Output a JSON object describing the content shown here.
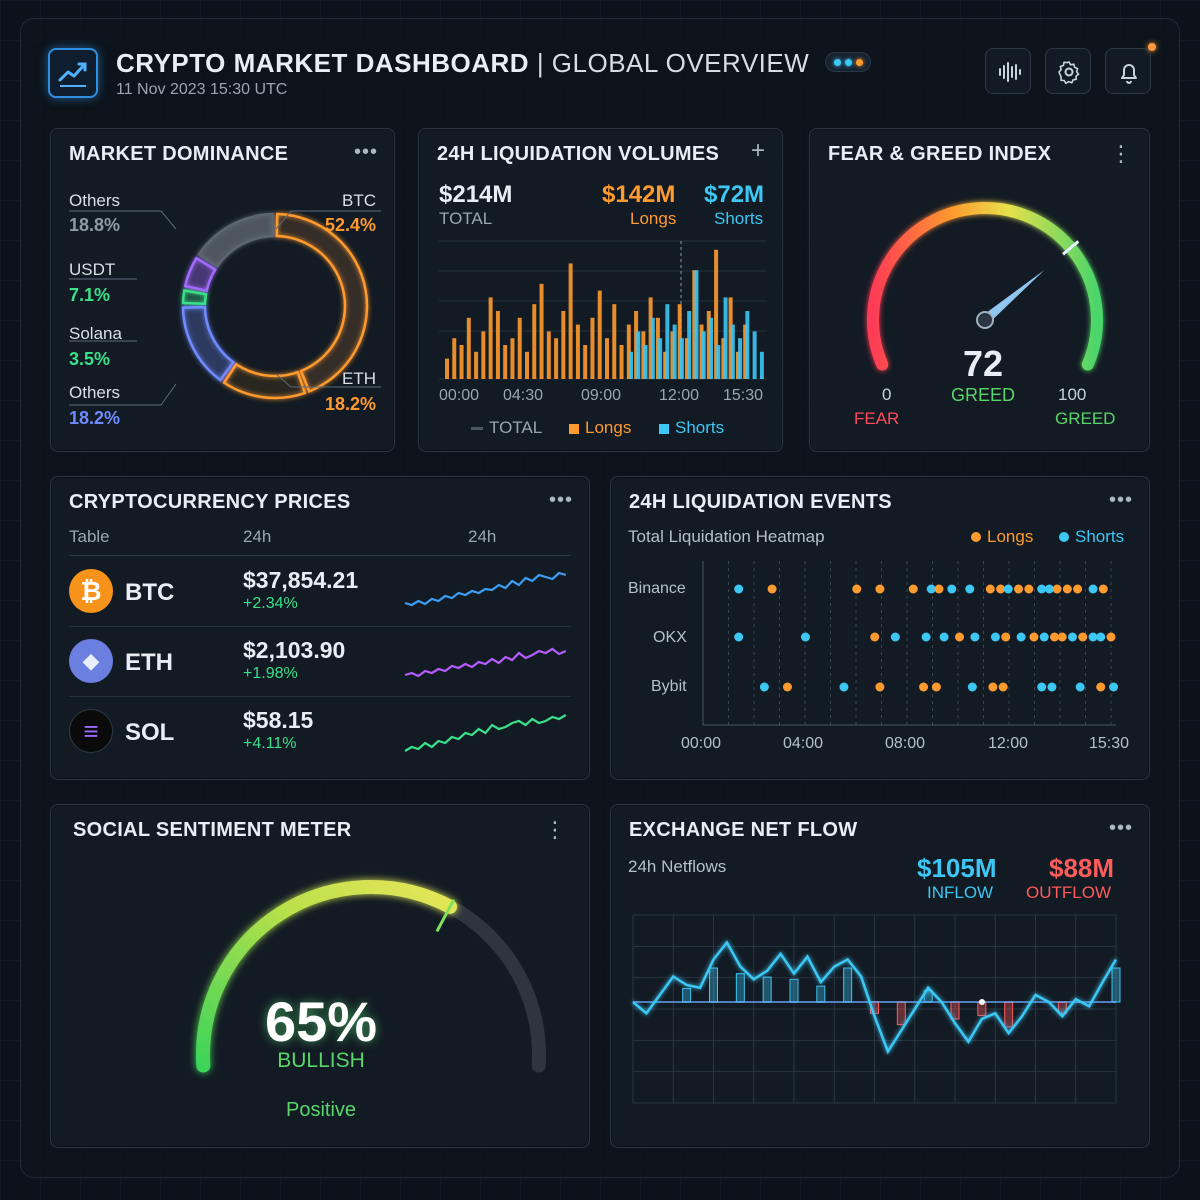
{
  "header": {
    "title": "CRYPTO MARKET DASHBOARD",
    "subtitle": "| GLOBAL OVERVIEW",
    "timestamp": "11 Nov 2023 15:30 UTC",
    "icons": [
      "trend-chart-icon",
      "waveform-icon",
      "gear-icon",
      "bell-icon"
    ]
  },
  "colors": {
    "btc": "#ff9a2e",
    "eth": "#8a7dff",
    "sol": "#3be08a",
    "shorts": "#3cc7f5",
    "longs": "#ff9a2e",
    "fear": "#ff4b5c",
    "greed": "#58d66a"
  },
  "dominance": {
    "title": "MARKET DOMINANCE",
    "labels": [
      {
        "name": "Others",
        "pct": "18.8%"
      },
      {
        "name": "USDT",
        "pct": "7.1%"
      },
      {
        "name": "Solana",
        "pct": "3.5%"
      },
      {
        "name": "Others",
        "pct": "18.2%"
      },
      {
        "name": "BTC",
        "pct": "52.4%"
      },
      {
        "name": "ETH",
        "pct": "18.2%"
      }
    ]
  },
  "liq_volumes": {
    "title": "24H LIQUIDATION VOLUMES",
    "total_value": "$214M",
    "total_label": "TOTAL",
    "longs_value": "$142M",
    "longs_label": "Longs",
    "shorts_value": "$72M",
    "shorts_label": "Shorts",
    "legend": [
      "TOTAL",
      "Longs",
      "Shorts"
    ]
  },
  "fear_greed": {
    "title": "FEAR & GREED INDEX",
    "value": "72",
    "value_num": 72,
    "value_label": "GREED",
    "min": "0",
    "min_label": "FEAR",
    "max": "100",
    "max_label": "GREED"
  },
  "prices": {
    "title": "CRYPTOCURRENCY PRICES",
    "headers": [
      "Table",
      "24h",
      "24h"
    ],
    "rows": [
      {
        "symbol": "BTC",
        "price": "$37,854.21",
        "change": "+2.34%",
        "icon": "bitcoin-icon",
        "glyph": "₿"
      },
      {
        "symbol": "ETH",
        "price": "$2,103.90",
        "change": "+1.98%",
        "icon": "ethereum-icon",
        "glyph": "◆"
      },
      {
        "symbol": "SOL",
        "price": "$58.15",
        "change": "+4.11%",
        "icon": "solana-icon",
        "glyph": "≡"
      }
    ]
  },
  "liq_events": {
    "title": "24H LIQUIDATION EVENTS",
    "subtitle": "Total Liquidation Heatmap",
    "legend_longs": "Longs",
    "legend_shorts": "Shorts",
    "exchanges": [
      "Binance",
      "OKX",
      "Bybit"
    ]
  },
  "sentiment": {
    "title": "SOCIAL SENTIMENT METER",
    "value": "65%",
    "value_num": 65,
    "label": "BULLISH",
    "caption": "Positive"
  },
  "netflow": {
    "title": "EXCHANGE NET FLOW",
    "subtitle": "24h Netflows",
    "inflow_value": "$105M",
    "inflow_label": "INFLOW",
    "outflow_value": "$88M",
    "outflow_label": "OUTFLOW"
  },
  "chart_data": [
    {
      "type": "pie",
      "title": "MARKET DOMINANCE",
      "categories": [
        "BTC",
        "ETH",
        "Others",
        "Solana",
        "USDT",
        "Others"
      ],
      "values": [
        52.4,
        18.2,
        18.2,
        3.5,
        7.1,
        18.8
      ]
    },
    {
      "type": "bar",
      "title": "24H LIQUIDATION VOLUMES",
      "x_ticks": [
        "00:00",
        "04:30",
        "09:00",
        "12:00",
        "15:30"
      ],
      "series": [
        {
          "name": "Longs",
          "values": [
            3,
            6,
            5,
            9,
            4,
            7,
            12,
            10,
            5,
            6,
            9,
            4,
            11,
            14,
            7,
            6,
            10,
            17,
            8,
            5,
            9,
            13,
            6,
            11,
            5,
            8,
            10,
            7,
            12,
            9,
            4,
            7,
            11,
            6,
            16,
            8,
            10,
            19,
            6,
            12,
            4,
            8
          ]
        },
        {
          "name": "Shorts",
          "values": [
            4,
            7,
            5,
            9,
            6,
            11,
            8,
            6,
            10,
            16,
            7,
            9,
            5,
            12,
            8,
            6,
            10,
            7,
            4
          ]
        }
      ],
      "ylim": [
        0,
        20
      ]
    },
    {
      "type": "scatter",
      "title": "24H LIQUIDATION EVENTS",
      "x_ticks": [
        "00:00",
        "04:00",
        "08:00",
        "12:00",
        "15:30"
      ],
      "series": [
        {
          "name": "Binance",
          "points": [
            [
              1.0,
              "short"
            ],
            [
              2.3,
              "long"
            ],
            [
              5.6,
              "long"
            ],
            [
              6.5,
              "long"
            ],
            [
              7.8,
              "long"
            ],
            [
              8.5,
              "short"
            ],
            [
              8.8,
              "long"
            ],
            [
              9.3,
              "short"
            ],
            [
              10.0,
              "short"
            ],
            [
              10.8,
              "long"
            ],
            [
              11.2,
              "long"
            ],
            [
              11.5,
              "short"
            ],
            [
              11.9,
              "long"
            ],
            [
              12.3,
              "long"
            ],
            [
              12.8,
              "short"
            ],
            [
              13.1,
              "short"
            ],
            [
              13.4,
              "long"
            ],
            [
              13.8,
              "long"
            ],
            [
              14.2,
              "long"
            ],
            [
              14.8,
              "short"
            ],
            [
              15.2,
              "long"
            ]
          ]
        },
        {
          "name": "OKX",
          "points": [
            [
              1.0,
              "short"
            ],
            [
              3.6,
              "short"
            ],
            [
              6.3,
              "long"
            ],
            [
              7.1,
              "short"
            ],
            [
              8.3,
              "short"
            ],
            [
              9.0,
              "short"
            ],
            [
              9.6,
              "long"
            ],
            [
              10.2,
              "short"
            ],
            [
              11.0,
              "short"
            ],
            [
              11.4,
              "long"
            ],
            [
              12.0,
              "short"
            ],
            [
              12.5,
              "long"
            ],
            [
              12.9,
              "short"
            ],
            [
              13.3,
              "long"
            ],
            [
              13.6,
              "long"
            ],
            [
              14.0,
              "short"
            ],
            [
              14.4,
              "long"
            ],
            [
              14.8,
              "short"
            ],
            [
              15.1,
              "short"
            ],
            [
              15.5,
              "long"
            ]
          ]
        },
        {
          "name": "Bybit",
          "points": [
            [
              2.0,
              "short"
            ],
            [
              2.9,
              "long"
            ],
            [
              5.1,
              "short"
            ],
            [
              6.5,
              "long"
            ],
            [
              8.2,
              "long"
            ],
            [
              8.7,
              "long"
            ],
            [
              10.1,
              "short"
            ],
            [
              10.9,
              "long"
            ],
            [
              11.3,
              "long"
            ],
            [
              12.8,
              "short"
            ],
            [
              13.2,
              "short"
            ],
            [
              14.3,
              "short"
            ],
            [
              15.1,
              "long"
            ],
            [
              15.6,
              "short"
            ]
          ]
        }
      ]
    },
    {
      "type": "line",
      "title": "EXCHANGE NET FLOW",
      "values": [
        0,
        -8,
        5,
        18,
        12,
        10,
        30,
        42,
        25,
        16,
        22,
        34,
        20,
        32,
        14,
        25,
        30,
        18,
        -10,
        -35,
        -20,
        -5,
        10,
        0,
        -15,
        -28,
        -12,
        -8,
        -22,
        -10,
        5,
        0,
        -10,
        2,
        -3,
        14,
        30
      ],
      "ylim": [
        -60,
        60
      ]
    }
  ]
}
